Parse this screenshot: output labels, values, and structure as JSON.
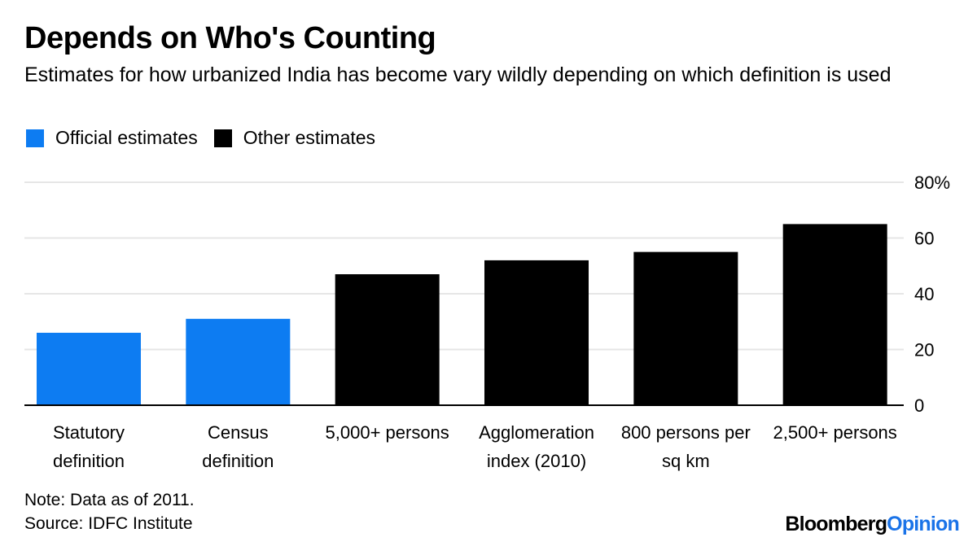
{
  "title": "Depends on Who's Counting",
  "subtitle": "Estimates for how urbanized India has become vary wildly depending on which definition is used",
  "legend": [
    {
      "label": "Official estimates",
      "color": "#0d7cf2"
    },
    {
      "label": "Other estimates",
      "color": "#000000"
    }
  ],
  "chart_data": {
    "type": "bar",
    "title": "Depends on Who's Counting",
    "xlabel": "",
    "ylabel": "",
    "ylim": [
      0,
      80
    ],
    "y_ticks": [
      "0",
      "20",
      "40",
      "60",
      "80%"
    ],
    "y_tick_values": [
      0,
      20,
      40,
      60,
      80
    ],
    "grid": true,
    "categories": [
      [
        "Statutory",
        "definition"
      ],
      [
        "Census",
        "definition"
      ],
      [
        "5,000+ persons"
      ],
      [
        "Agglomeration",
        "index (2010)"
      ],
      [
        "800 persons per",
        "sq km"
      ],
      [
        "2,500+ persons"
      ]
    ],
    "values": [
      26,
      31,
      47,
      52,
      55,
      65
    ],
    "series_group": [
      "Official estimates",
      "Official estimates",
      "Other estimates",
      "Other estimates",
      "Other estimates",
      "Other estimates"
    ],
    "colors": {
      "Official estimates": "#0d7cf2",
      "Other estimates": "#000000"
    }
  },
  "footer": {
    "note": "Note: Data as of 2011.",
    "source": "Source: IDFC Institute",
    "brand_main": "Bloomberg",
    "brand_accent": "Opinion"
  }
}
